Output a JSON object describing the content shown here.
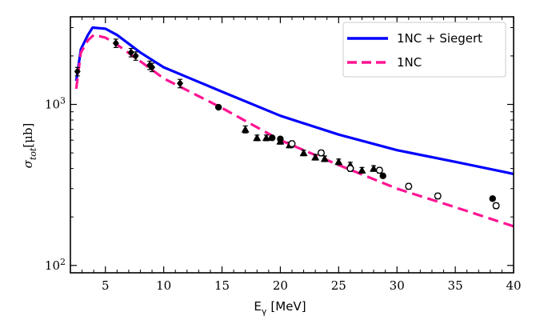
{
  "chart_data": {
    "type": "scatter",
    "xlabel": "E",
    "xlabel_sub": "γ",
    "xlabel_unit": "[MeV]",
    "ylabel": "σ",
    "ylabel_sub": "tot",
    "ylabel_unit": "[μb]",
    "xlim": [
      2,
      40
    ],
    "ylim": [
      90,
      3500
    ],
    "yscale": "log",
    "x_ticks": [
      5,
      10,
      15,
      20,
      25,
      30,
      35,
      40
    ],
    "x_tick_labels": [
      "5",
      "10",
      "15",
      "20",
      "25",
      "30",
      "35",
      "40"
    ],
    "y_major_ticks": [
      100,
      1000
    ],
    "y_tick_labels": [
      {
        "base": "10",
        "exp": "2"
      },
      {
        "base": "10",
        "exp": "3"
      }
    ],
    "legend_position": "top-right",
    "series": [
      {
        "name": "1NC + Siegert",
        "kind": "line",
        "style": "solid",
        "color": "#0000ff",
        "x": [
          2.5,
          2.9,
          3.5,
          3.9,
          5.0,
          6.0,
          8.0,
          10.0,
          15.0,
          20.0,
          25.0,
          30.0,
          35.0,
          40.0
        ],
        "y": [
          1400,
          2200,
          2700,
          3000,
          2950,
          2700,
          2100,
          1700,
          1200,
          850,
          650,
          520,
          440,
          370
        ]
      },
      {
        "name": "1NC",
        "kind": "line",
        "style": "dashed",
        "color": "#ff1493",
        "x": [
          2.5,
          2.9,
          3.5,
          4.0,
          5.0,
          6.0,
          8.0,
          10.0,
          15.0,
          20.0,
          25.0,
          30.0,
          35.0,
          40.0
        ],
        "y": [
          1250,
          2100,
          2500,
          2700,
          2600,
          2350,
          1850,
          1450,
          950,
          600,
          420,
          300,
          230,
          175
        ]
      },
      {
        "kind": "points",
        "marker": "diamond",
        "x": [
          2.6,
          5.9,
          7.2,
          7.6,
          8.8,
          9.0,
          11.4
        ],
        "y": [
          1600,
          2400,
          2100,
          2000,
          1750,
          1700,
          1350
        ],
        "err": [
          0.06,
          0.06,
          0.06,
          0.06,
          0.06,
          0.06,
          0.06
        ]
      },
      {
        "kind": "points",
        "marker": "circle-filled",
        "x": [
          14.7,
          19.3,
          20.0,
          28.8,
          38.2
        ],
        "y": [
          960,
          620,
          610,
          360,
          260
        ],
        "err": [
          0,
          0,
          0,
          0,
          0
        ]
      },
      {
        "kind": "points",
        "marker": "triangle",
        "x": [
          17.0,
          18.0,
          18.8,
          20.0,
          20.8,
          22.0,
          23.0,
          23.8,
          25.0,
          26.0,
          27.0,
          28.0
        ],
        "y": [
          700,
          620,
          620,
          590,
          560,
          500,
          470,
          460,
          440,
          420,
          390,
          400
        ],
        "err": [
          0.05,
          0.04,
          0.04,
          0.04,
          0.04,
          0.04,
          0.04,
          0.04,
          0.04,
          0.04,
          0.04,
          0.04
        ]
      },
      {
        "kind": "points",
        "marker": "circle-open",
        "x": [
          21.0,
          23.5,
          26.0,
          28.5,
          31.0,
          33.5,
          38.5
        ],
        "y": [
          570,
          500,
          400,
          390,
          310,
          270,
          235
        ],
        "err": [
          0.04,
          0.04,
          0.04,
          0.04,
          0.04,
          0.04,
          0.04
        ]
      }
    ]
  },
  "colors": {
    "siegert_line": "#0000ff",
    "nc_line": "#ff1493",
    "markers": "#000000"
  }
}
